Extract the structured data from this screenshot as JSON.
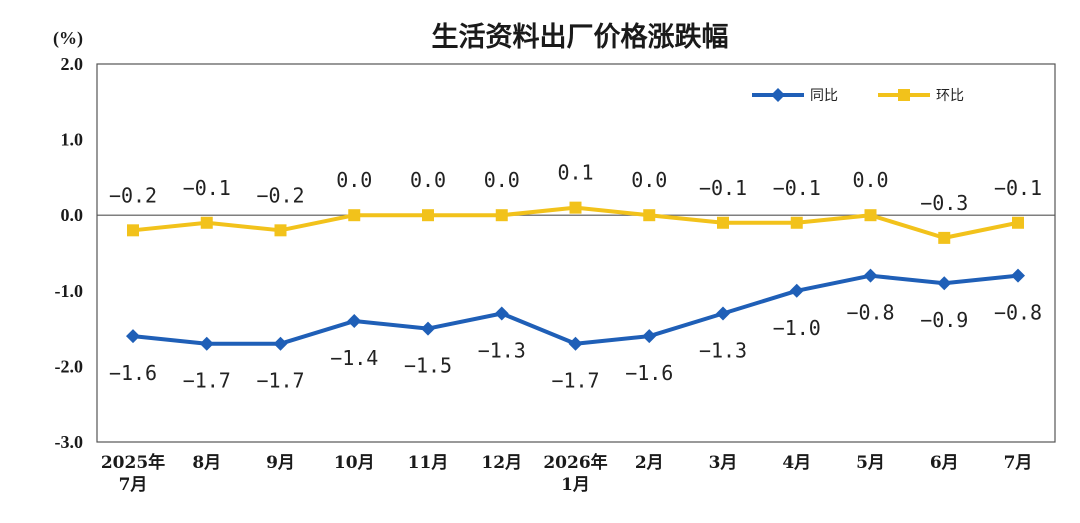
{
  "chart_data": {
    "type": "line",
    "title": "生活资料出厂价格涨跌幅",
    "unit": "(%)",
    "categories": [
      "2025年\n7月",
      "8月",
      "9月",
      "10月",
      "11月",
      "12月",
      "2026年\n1月",
      "2月",
      "3月",
      "4月",
      "5月",
      "6月",
      "7月"
    ],
    "ylim": [
      -3.0,
      2.0
    ],
    "yticks": [
      2.0,
      1.0,
      0.0,
      -1.0,
      -2.0,
      -3.0
    ],
    "ytick_labels": [
      "2.0",
      "1.0",
      "0.0",
      "-1.0",
      "-2.0",
      "-3.0"
    ],
    "grid": false,
    "legend_position": "top-right",
    "series": [
      {
        "name": "同比",
        "color": "#1f5fb7",
        "marker": "diamond",
        "values": [
          -1.6,
          -1.7,
          -1.7,
          -1.4,
          -1.5,
          -1.3,
          -1.7,
          -1.6,
          -1.3,
          -1.0,
          -0.8,
          -0.9,
          -0.8
        ],
        "labels": [
          "−1.6",
          "−1.7",
          "−1.7",
          "−1.4",
          "−1.5",
          "−1.3",
          "−1.7",
          "−1.6",
          "−1.3",
          "−1.0",
          "−0.8",
          "−0.9",
          "−0.8"
        ]
      },
      {
        "name": "环比",
        "color": "#f2c21b",
        "marker": "square",
        "values": [
          -0.2,
          -0.1,
          -0.2,
          0.0,
          0.0,
          0.0,
          0.1,
          0.0,
          -0.1,
          -0.1,
          0.0,
          -0.3,
          -0.1
        ],
        "labels": [
          "−0.2",
          "−0.1",
          "−0.2",
          "0.0",
          "0.0",
          "0.0",
          "0.1",
          "0.0",
          "−0.1",
          "−0.1",
          "0.0",
          "−0.3",
          "−0.1"
        ]
      }
    ]
  }
}
